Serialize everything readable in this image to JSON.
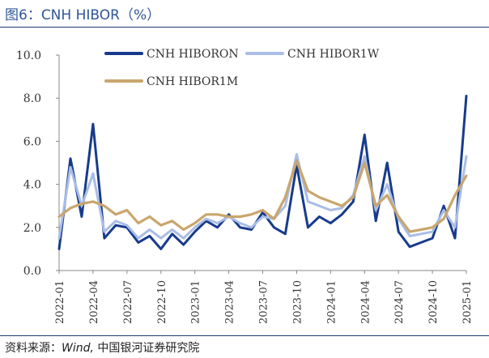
{
  "header": {
    "title": "图6：CNH HIBOR（%）"
  },
  "footer": {
    "source_prefix": "资料来源：",
    "source_en": "Wind,",
    "source_cn": " 中国银河证券研究院"
  },
  "colors": {
    "hiboron": "#173b8c",
    "hibor1w": "#a9bde6",
    "hibor1m": "#c9a66d",
    "axis": "#888888",
    "text": "#333333"
  },
  "chart_data": {
    "type": "line",
    "title": "",
    "xlabel": "",
    "ylabel": "",
    "ylim": [
      0,
      10
    ],
    "yticks": [
      "0.0",
      "2.0",
      "4.0",
      "6.0",
      "8.0",
      "10.0"
    ],
    "xtick_labels": [
      "2022-01",
      "2022-04",
      "2022-07",
      "2022-10",
      "2023-01",
      "2023-04",
      "2023-07",
      "2023-10",
      "2024-01",
      "2024-04",
      "2024-07",
      "2024-10",
      "2025-01"
    ],
    "grid": false,
    "legend_position": "top",
    "x": [
      "2022-01",
      "2022-02",
      "2022-03",
      "2022-04",
      "2022-05",
      "2022-06",
      "2022-07",
      "2022-08",
      "2022-09",
      "2022-10",
      "2022-11",
      "2022-12",
      "2023-01",
      "2023-02",
      "2023-03",
      "2023-04",
      "2023-05",
      "2023-06",
      "2023-07",
      "2023-08",
      "2023-09",
      "2023-10",
      "2023-11",
      "2023-12",
      "2024-01",
      "2024-02",
      "2024-03",
      "2024-04",
      "2024-05",
      "2024-06",
      "2024-07",
      "2024-08",
      "2024-09",
      "2024-10",
      "2024-11",
      "2024-12",
      "2025-01"
    ],
    "series": [
      {
        "name": "CNH HIBORON",
        "color": "#173b8c",
        "values": [
          1.0,
          5.2,
          2.5,
          6.8,
          1.5,
          2.1,
          2.0,
          1.3,
          1.6,
          1.0,
          1.7,
          1.2,
          1.8,
          2.3,
          2.0,
          2.6,
          2.0,
          1.9,
          2.7,
          2.0,
          1.7,
          4.9,
          2.0,
          2.5,
          2.2,
          2.6,
          3.2,
          6.3,
          2.3,
          5.0,
          1.8,
          1.1,
          1.3,
          1.5,
          3.0,
          1.5,
          8.1
        ]
      },
      {
        "name": "CNH HIBOR1W",
        "color": "#a9bde6",
        "values": [
          1.5,
          4.8,
          3.0,
          4.5,
          1.8,
          2.3,
          2.1,
          1.5,
          1.9,
          1.5,
          1.9,
          1.5,
          2.0,
          2.4,
          2.2,
          2.5,
          2.2,
          2.0,
          2.5,
          2.4,
          3.0,
          5.4,
          3.2,
          3.0,
          2.8,
          2.9,
          3.5,
          5.3,
          2.8,
          4.0,
          2.4,
          1.6,
          1.7,
          1.8,
          2.8,
          2.0,
          5.3
        ]
      },
      {
        "name": "CNH HIBOR1M",
        "color": "#c9a66d",
        "values": [
          2.5,
          2.9,
          3.1,
          3.2,
          3.0,
          2.6,
          2.8,
          2.2,
          2.5,
          2.1,
          2.3,
          1.9,
          2.2,
          2.6,
          2.6,
          2.5,
          2.5,
          2.6,
          2.8,
          2.4,
          3.4,
          5.1,
          3.7,
          3.4,
          3.2,
          3.0,
          3.4,
          5.0,
          3.0,
          3.5,
          2.5,
          1.8,
          1.9,
          2.0,
          2.4,
          3.5,
          4.4
        ]
      }
    ]
  }
}
